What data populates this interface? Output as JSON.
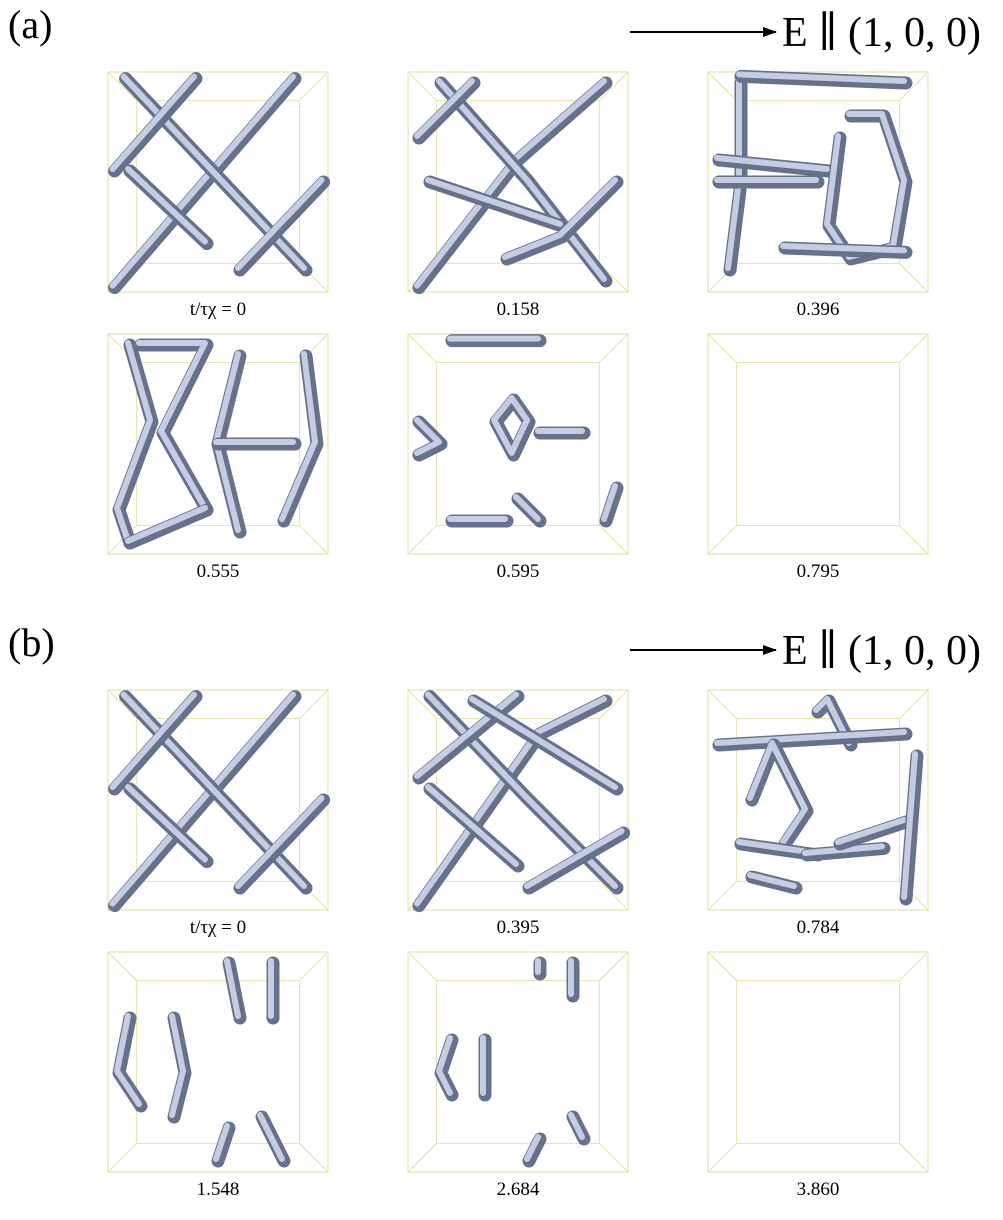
{
  "panels": [
    {
      "label": "(a)",
      "field_label": "E ∥ (1, 0, 0)",
      "captions": [
        "t/τχ = 0",
        "0.158",
        "0.396",
        "0.555",
        "0.595",
        "0.795"
      ]
    },
    {
      "label": "(b)",
      "field_label": "E ∥ (1, 0, 0)",
      "captions": [
        "t/τχ = 0",
        "0.395",
        "0.784",
        "1.548",
        "2.684",
        "3.860"
      ]
    }
  ]
}
